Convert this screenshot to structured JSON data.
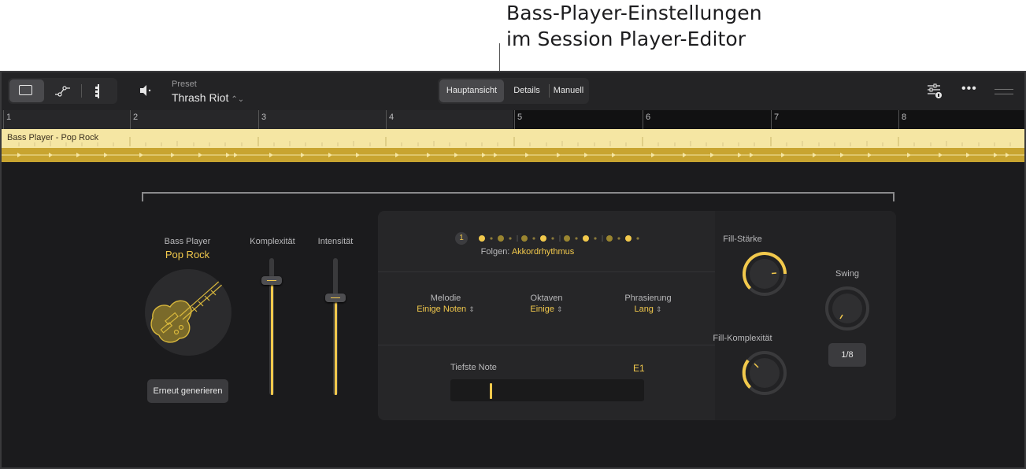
{
  "callout": {
    "line1": "Bass-Player-Einstellungen",
    "line2": "im Session Player-Editor"
  },
  "toolbar": {
    "view_modes": [
      "single-view-icon",
      "automation-icon",
      "score-icon"
    ],
    "preset_label": "Preset",
    "preset_value": "Thrash Riot",
    "tabs": [
      "Hauptansicht",
      "Details",
      "Manuell"
    ],
    "active_tab": "Hauptansicht"
  },
  "ruler": {
    "bars": [
      "1",
      "2",
      "3",
      "4",
      "5",
      "6",
      "7",
      "8"
    ]
  },
  "region": {
    "name": "Bass Player - Pop Rock",
    "color_top": "#f5e6a3",
    "color_bottom": "#c8a430"
  },
  "player": {
    "label": "Bass Player",
    "style": "Pop Rock",
    "regenerate_label": "Erneut generieren"
  },
  "sliders": {
    "complexity_label": "Komplexität",
    "complexity_level": 0.84,
    "intensity_label": "Intensität",
    "intensity_level": 0.71
  },
  "pattern": {
    "badge": "1",
    "follow_label": "Folgen:",
    "follow_value": "Akkordrhythmus"
  },
  "options": {
    "melody_label": "Melodie",
    "melody_value": "Einige Noten",
    "octaves_label": "Oktaven",
    "octaves_value": "Einige",
    "phrasing_label": "Phrasierung",
    "phrasing_value": "Lang"
  },
  "lowest_note": {
    "label": "Tiefste Note",
    "value": "E1"
  },
  "knobs": {
    "fill_strength_label": "Fill-Stärke",
    "fill_complexity_label": "Fill-Komplexität",
    "swing_label": "Swing",
    "swing_value": "1/8"
  },
  "colors": {
    "accent": "#f2c94c",
    "background": "#1b1b1d",
    "panel": "#262628"
  }
}
